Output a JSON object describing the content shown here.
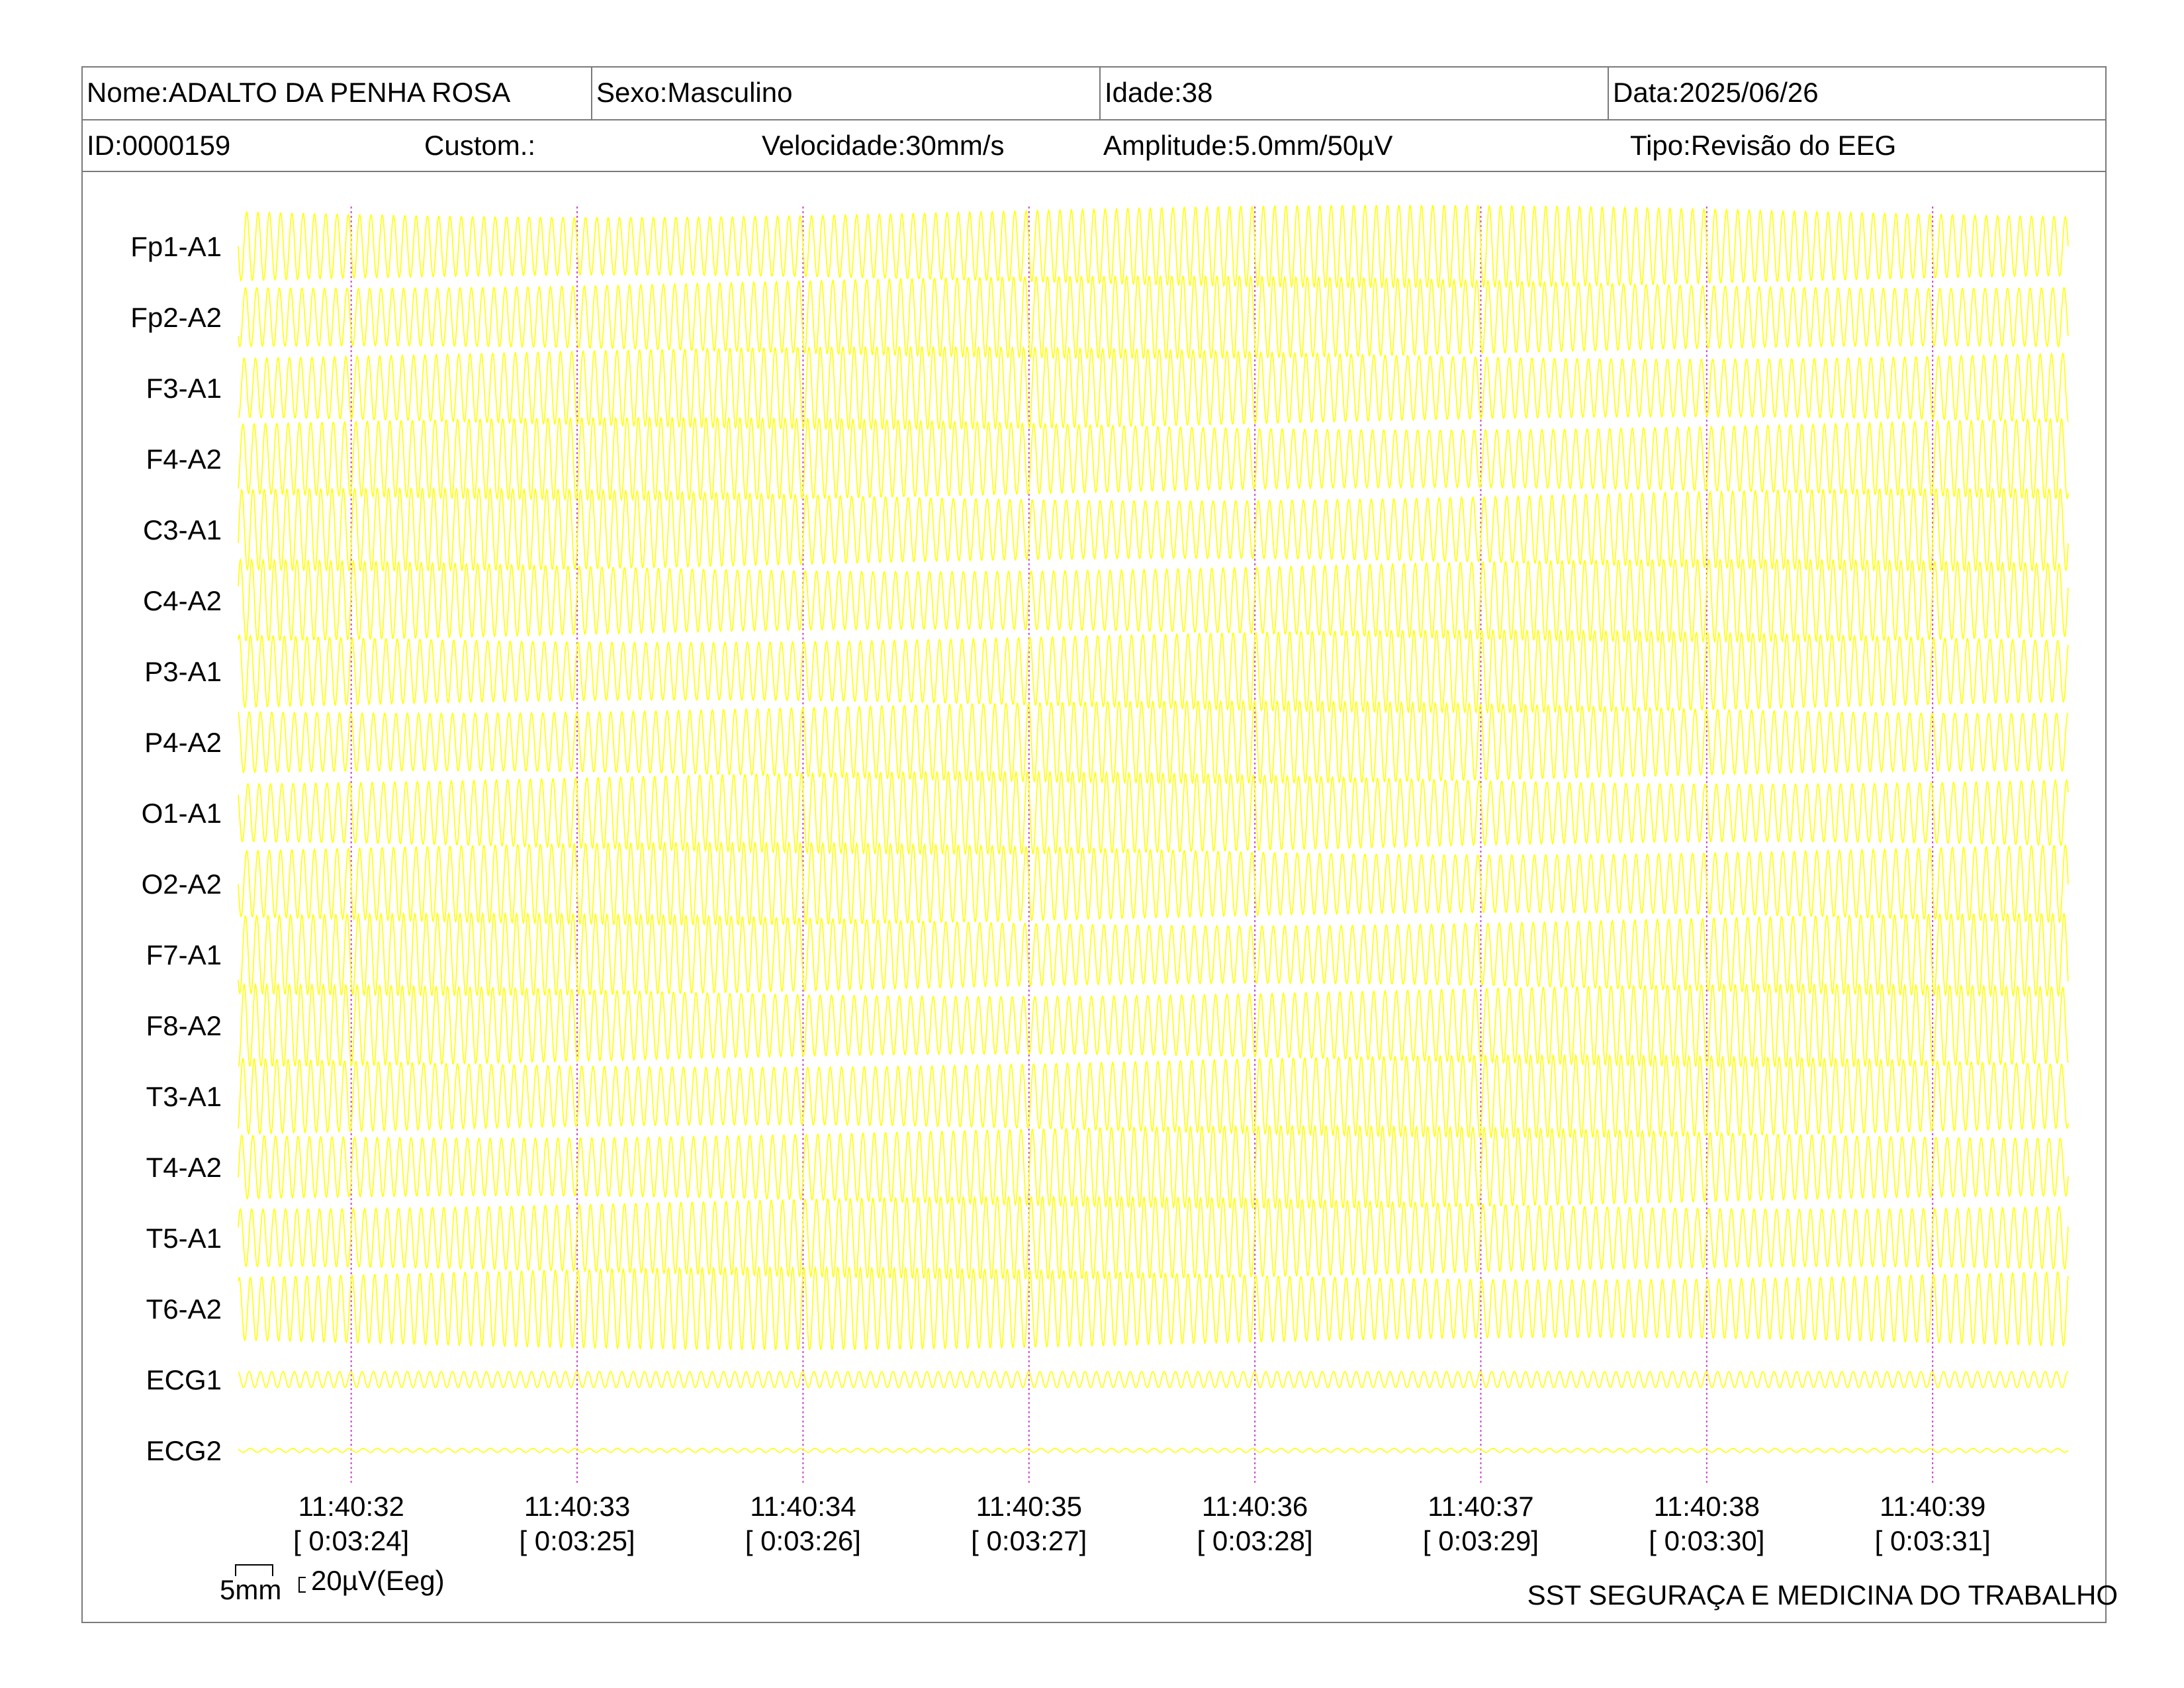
{
  "header": {
    "nome": "Nome:ADALTO DA PENHA ROSA",
    "sexo": "Sexo:Masculino",
    "idade": "Idade:38",
    "data": "Data:2025/06/26",
    "id": "ID:0000159",
    "custom": "Custom.:",
    "velocidade": "Velocidade:30mm/s",
    "amplitude": "Amplitude:5.0mm/50µV",
    "tipo": "Tipo:Revisão do EEG"
  },
  "scale": {
    "time_label": "5mm",
    "amp_label": "20µV(Eeg)"
  },
  "footer": {
    "org": "SST SEGURAÇA E MEDICINA DO TRABALHO"
  },
  "chart_data": {
    "type": "line",
    "title": "",
    "channels": [
      "Fp1-A1",
      "Fp2-A2",
      "F3-A1",
      "F4-A2",
      "C3-A1",
      "C4-A2",
      "P3-A1",
      "P4-A2",
      "O1-A1",
      "O2-A2",
      "F7-A1",
      "F8-A2",
      "T3-A1",
      "T4-A2",
      "T5-A1",
      "T6-A2",
      "ECG1",
      "ECG2"
    ],
    "time_ticks": [
      "11:40:32",
      "11:40:33",
      "11:40:34",
      "11:40:35",
      "11:40:36",
      "11:40:37",
      "11:40:38",
      "11:40:39"
    ],
    "elapsed_ticks": [
      "[ 0:03:24]",
      "[ 0:03:25]",
      "[ 0:03:26]",
      "[ 0:03:27]",
      "[ 0:03:28]",
      "[ 0:03:29]",
      "[ 0:03:30]",
      "[ 0:03:31]"
    ],
    "xlim_seconds": [
      31.5,
      39.6
    ],
    "trace_color": "#ffff00",
    "marker_color": "#cc44cc",
    "eeg_frequency_hz": 20,
    "ecg1_frequency_hz": 20
  }
}
